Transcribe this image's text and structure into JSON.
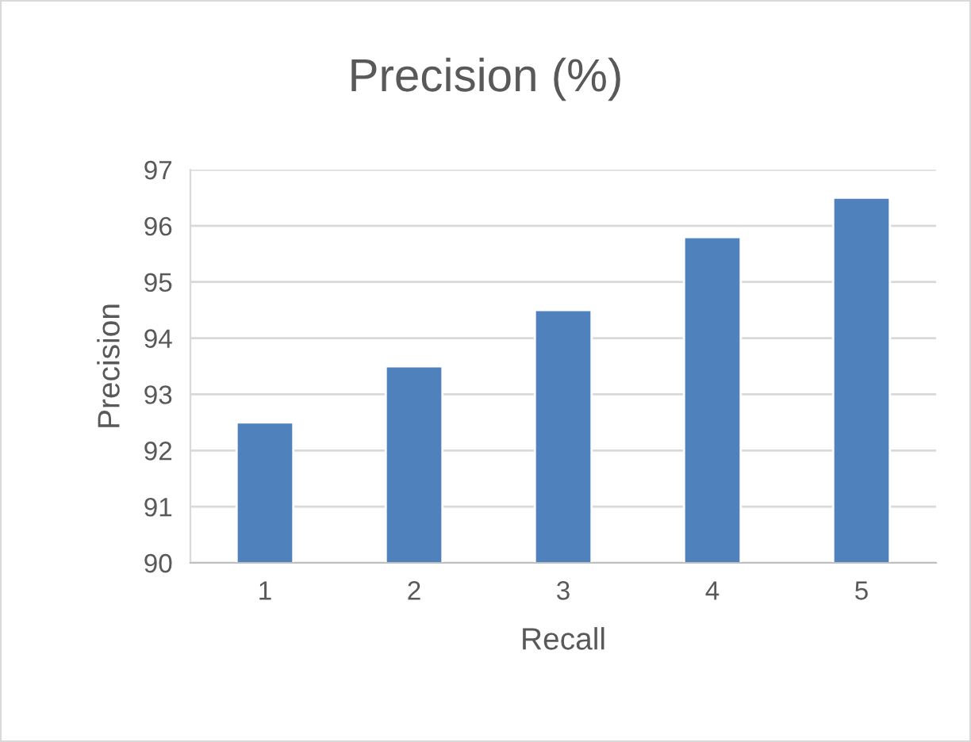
{
  "chart_data": {
    "type": "bar",
    "title": "Precision (%)",
    "xlabel": "Recall",
    "ylabel": "Precision",
    "categories": [
      "1",
      "2",
      "3",
      "4",
      "5"
    ],
    "values": [
      92.5,
      93.5,
      94.5,
      95.8,
      96.5
    ],
    "color": "#4f81bd",
    "ylim": [
      90,
      97
    ],
    "yticks": [
      90,
      91,
      92,
      93,
      94,
      95,
      96,
      97
    ],
    "grid": "y",
    "legend": false
  }
}
